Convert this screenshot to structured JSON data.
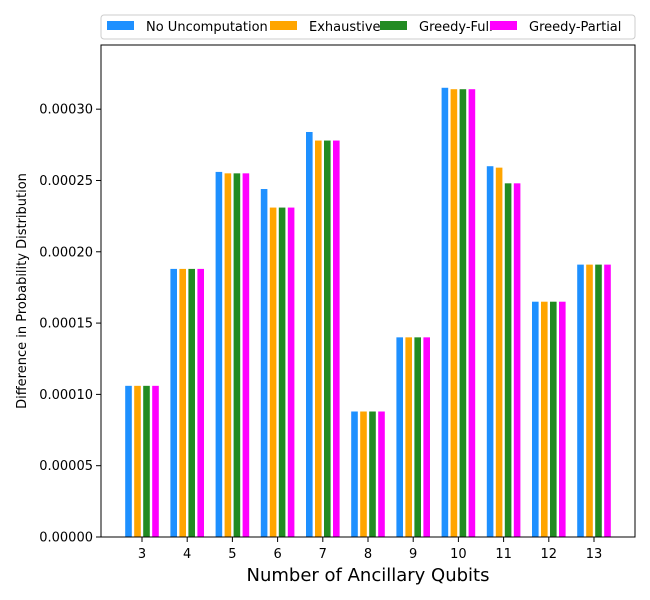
{
  "chart_data": {
    "type": "bar",
    "title": "",
    "xlabel": "Number of Ancillary Qubits",
    "ylabel": "Difference in Probability Distribution",
    "categories": [
      "3",
      "4",
      "5",
      "6",
      "7",
      "8",
      "9",
      "10",
      "11",
      "12",
      "13"
    ],
    "ylim": [
      0,
      0.000345
    ],
    "yticks": [
      0.0,
      5e-05,
      0.0001,
      0.00015,
      0.0002,
      0.00025,
      0.0003
    ],
    "ytick_labels": [
      "0.00000",
      "0.00005",
      "0.00010",
      "0.00015",
      "0.00020",
      "0.00025",
      "0.00030"
    ],
    "grid": false,
    "legend_position": "top",
    "series": [
      {
        "name": "No Uncomputation",
        "color": "#1e90ff",
        "values": [
          0.000106,
          0.000188,
          0.000256,
          0.000244,
          0.000284,
          8.8e-05,
          0.00014,
          0.000315,
          0.00026,
          0.000165,
          0.000191
        ]
      },
      {
        "name": "Exhaustive",
        "color": "#ffa500",
        "values": [
          0.000106,
          0.000188,
          0.000255,
          0.000231,
          0.000278,
          8.8e-05,
          0.00014,
          0.000314,
          0.000259,
          0.000165,
          0.000191
        ]
      },
      {
        "name": "Greedy-Full",
        "color": "#228b22",
        "values": [
          0.000106,
          0.000188,
          0.000255,
          0.000231,
          0.000278,
          8.8e-05,
          0.00014,
          0.000314,
          0.000248,
          0.000165,
          0.000191
        ]
      },
      {
        "name": "Greedy-Partial",
        "color": "#ff00ff",
        "values": [
          0.000106,
          0.000188,
          0.000255,
          0.000231,
          0.000278,
          8.8e-05,
          0.00014,
          0.000314,
          0.000248,
          0.000165,
          0.000191
        ]
      }
    ]
  }
}
